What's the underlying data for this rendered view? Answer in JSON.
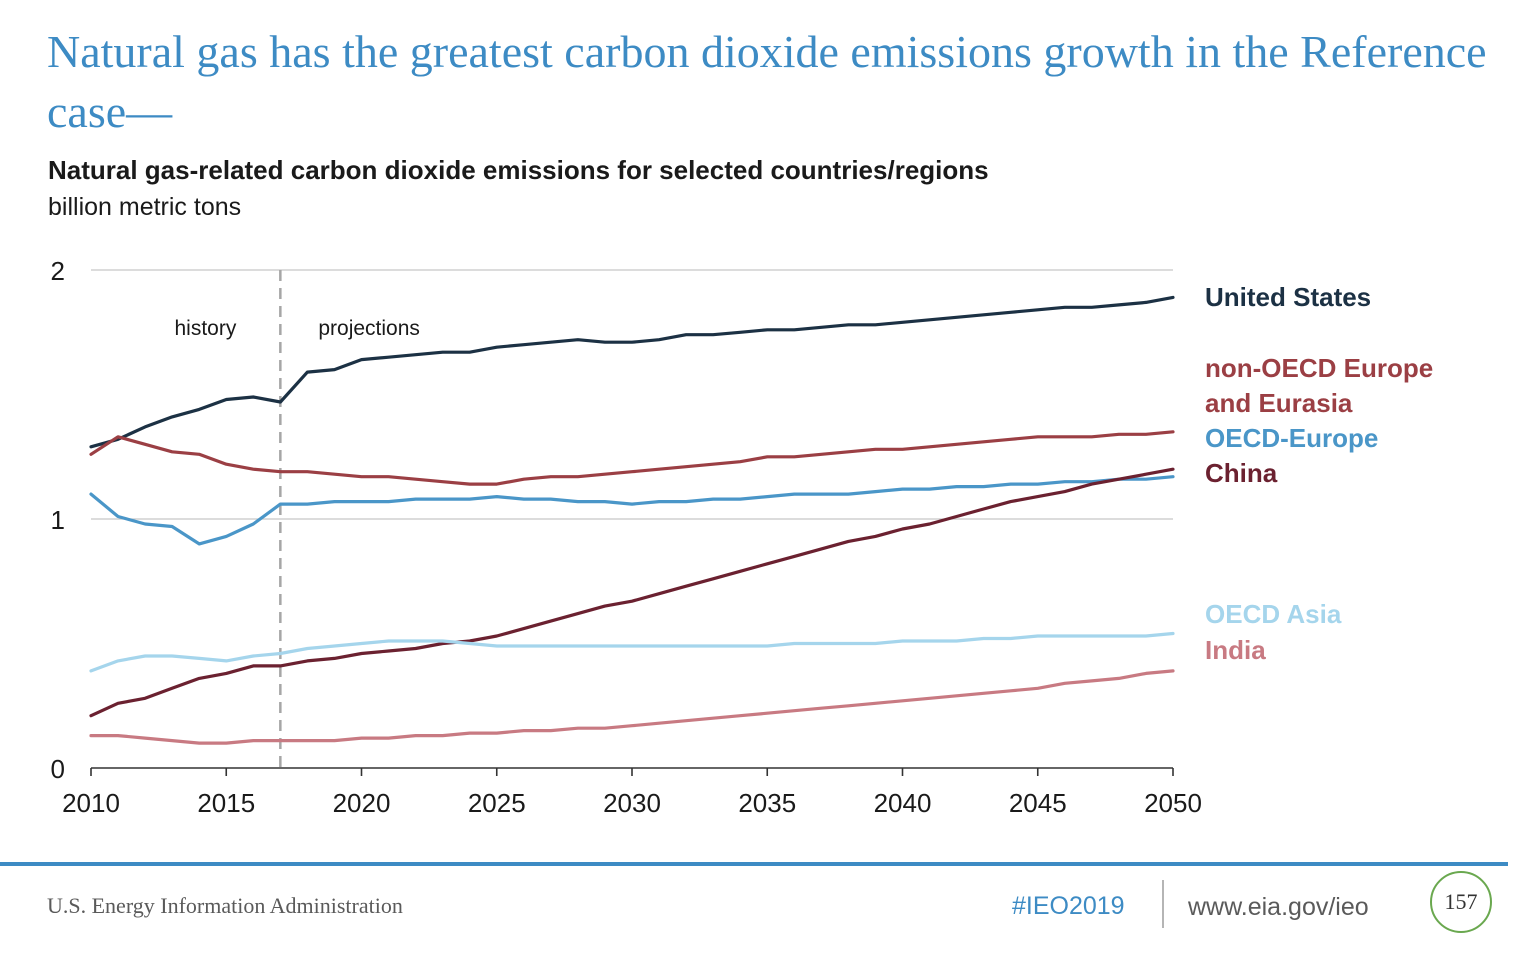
{
  "slide": {
    "title": "Natural gas has the greatest carbon dioxide emissions growth in the Reference case—"
  },
  "chart_data": {
    "type": "line",
    "title": "Natural gas-related carbon dioxide emissions for selected countries/regions",
    "subtitle": "billion metric tons",
    "xlabel": "",
    "ylabel": "",
    "xlim": [
      2010,
      2050
    ],
    "ylim": [
      0,
      2
    ],
    "x_ticks": [
      "2010",
      "2015",
      "2020",
      "2025",
      "2030",
      "2035",
      "2040",
      "2045",
      "2050"
    ],
    "y_ticks": [
      "0",
      "1",
      "2"
    ],
    "grid": "horizontal",
    "legend": "right",
    "divider_year": 2017,
    "annotations": {
      "history": "history",
      "projections": "projections"
    },
    "x": [
      2010,
      2011,
      2012,
      2013,
      2014,
      2015,
      2016,
      2017,
      2018,
      2019,
      2020,
      2021,
      2022,
      2023,
      2024,
      2025,
      2026,
      2027,
      2028,
      2029,
      2030,
      2031,
      2032,
      2033,
      2034,
      2035,
      2036,
      2037,
      2038,
      2039,
      2040,
      2041,
      2042,
      2043,
      2044,
      2045,
      2046,
      2047,
      2048,
      2049,
      2050
    ],
    "series": [
      {
        "name": "United States",
        "label_lines": [
          "United States"
        ],
        "color": "#1c3144",
        "values": [
          1.29,
          1.32,
          1.37,
          1.41,
          1.44,
          1.48,
          1.49,
          1.47,
          1.59,
          1.6,
          1.64,
          1.65,
          1.66,
          1.67,
          1.67,
          1.69,
          1.7,
          1.71,
          1.72,
          1.71,
          1.71,
          1.72,
          1.74,
          1.74,
          1.75,
          1.76,
          1.76,
          1.77,
          1.78,
          1.78,
          1.79,
          1.8,
          1.81,
          1.82,
          1.83,
          1.84,
          1.85,
          1.85,
          1.86,
          1.87,
          1.89
        ]
      },
      {
        "name": "non-OECD Europe and Eurasia",
        "label_lines": [
          "non-OECD Europe",
          "and Eurasia"
        ],
        "color": "#9b3f44",
        "values": [
          1.26,
          1.33,
          1.3,
          1.27,
          1.26,
          1.22,
          1.2,
          1.19,
          1.19,
          1.18,
          1.17,
          1.17,
          1.16,
          1.15,
          1.14,
          1.14,
          1.16,
          1.17,
          1.17,
          1.18,
          1.19,
          1.2,
          1.21,
          1.22,
          1.23,
          1.25,
          1.25,
          1.26,
          1.27,
          1.28,
          1.28,
          1.29,
          1.3,
          1.31,
          1.32,
          1.33,
          1.33,
          1.33,
          1.34,
          1.34,
          1.35
        ]
      },
      {
        "name": "OECD-Europe",
        "label_lines": [
          "OECD-Europe"
        ],
        "color": "#4a96c8",
        "values": [
          1.1,
          1.01,
          0.98,
          0.97,
          0.9,
          0.93,
          0.98,
          1.06,
          1.06,
          1.07,
          1.07,
          1.07,
          1.08,
          1.08,
          1.08,
          1.09,
          1.08,
          1.08,
          1.07,
          1.07,
          1.06,
          1.07,
          1.07,
          1.08,
          1.08,
          1.09,
          1.1,
          1.1,
          1.1,
          1.11,
          1.12,
          1.12,
          1.13,
          1.13,
          1.14,
          1.14,
          1.15,
          1.15,
          1.16,
          1.16,
          1.17
        ]
      },
      {
        "name": "China",
        "label_lines": [
          "China"
        ],
        "color": "#6b2130",
        "values": [
          0.21,
          0.26,
          0.28,
          0.32,
          0.36,
          0.38,
          0.41,
          0.41,
          0.43,
          0.44,
          0.46,
          0.47,
          0.48,
          0.5,
          0.51,
          0.53,
          0.56,
          0.59,
          0.62,
          0.65,
          0.67,
          0.7,
          0.73,
          0.76,
          0.79,
          0.82,
          0.85,
          0.88,
          0.91,
          0.93,
          0.96,
          0.98,
          1.01,
          1.04,
          1.07,
          1.09,
          1.11,
          1.14,
          1.16,
          1.18,
          1.2
        ]
      },
      {
        "name": "OECD Asia",
        "label_lines": [
          "OECD Asia"
        ],
        "color": "#a5d5ec",
        "values": [
          0.39,
          0.43,
          0.45,
          0.45,
          0.44,
          0.43,
          0.45,
          0.46,
          0.48,
          0.49,
          0.5,
          0.51,
          0.51,
          0.51,
          0.5,
          0.49,
          0.49,
          0.49,
          0.49,
          0.49,
          0.49,
          0.49,
          0.49,
          0.49,
          0.49,
          0.49,
          0.5,
          0.5,
          0.5,
          0.5,
          0.51,
          0.51,
          0.51,
          0.52,
          0.52,
          0.53,
          0.53,
          0.53,
          0.53,
          0.53,
          0.54
        ]
      },
      {
        "name": "India",
        "label_lines": [
          "India"
        ],
        "color": "#c87a82",
        "values": [
          0.13,
          0.13,
          0.12,
          0.11,
          0.1,
          0.1,
          0.11,
          0.11,
          0.11,
          0.11,
          0.12,
          0.12,
          0.13,
          0.13,
          0.14,
          0.14,
          0.15,
          0.15,
          0.16,
          0.16,
          0.17,
          0.18,
          0.19,
          0.2,
          0.21,
          0.22,
          0.23,
          0.24,
          0.25,
          0.26,
          0.27,
          0.28,
          0.29,
          0.3,
          0.31,
          0.32,
          0.34,
          0.35,
          0.36,
          0.38,
          0.39
        ]
      }
    ]
  },
  "footer": {
    "agency": "U.S. Energy Information Administration",
    "hashtag": "#IEO2019",
    "url": "www.eia.gov/ieo",
    "page_number": "157"
  }
}
